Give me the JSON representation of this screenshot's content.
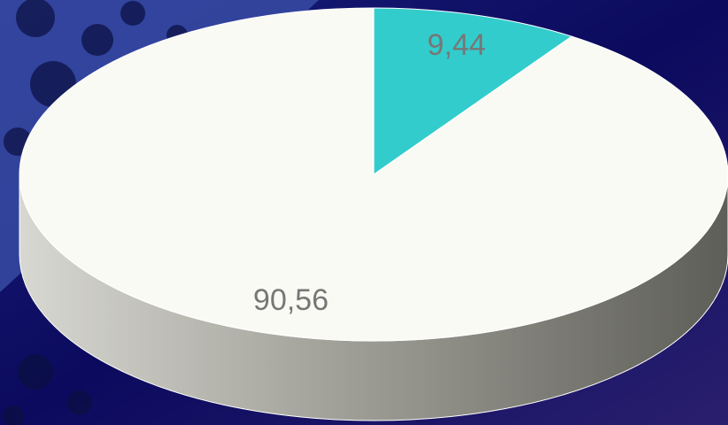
{
  "chart_data": {
    "type": "pie",
    "categories": [
      null,
      null
    ],
    "values": [
      9.44,
      90.56
    ],
    "value_labels": [
      "9,44",
      "90,56"
    ],
    "colors": [
      "#33cccc",
      "#fafaf5"
    ]
  }
}
